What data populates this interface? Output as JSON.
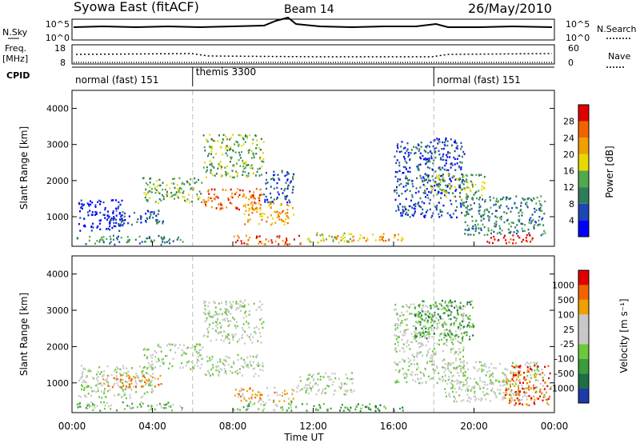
{
  "header": {
    "title": "Syowa East (fitACF)",
    "beam": "Beam 14",
    "date": "26/May/2010"
  },
  "top_panels": {
    "nsky_label": "N.Sky",
    "nsearch_label": "N.Search",
    "freq_label_1": "Freq.",
    "freq_label_2": "[MHz]",
    "nave_label": "Nave",
    "cpid_label": "CPID",
    "nsky_ticks": [
      "10^5",
      "10^0"
    ],
    "nsearch_ticks": [
      "10^5",
      "10^0"
    ],
    "freq_ticks": [
      "18",
      "8"
    ],
    "nave_ticks": [
      "60",
      "0"
    ],
    "cpid_segments": [
      {
        "label": "normal (fast) 151",
        "start": 0,
        "end": 6
      },
      {
        "label": "themis 3300",
        "start": 6,
        "end": 18
      },
      {
        "label": "normal (fast) 151",
        "start": 18,
        "end": 24
      }
    ]
  },
  "x_axis": {
    "title": "Time UT",
    "ticks": [
      "00:00",
      "04:00",
      "08:00",
      "12:00",
      "16:00",
      "20:00",
      "00:00"
    ]
  },
  "colors": {
    "power_scale": [
      "#0000ff",
      "#1e46b4",
      "#2e7d5a",
      "#52a84f",
      "#e8d800",
      "#f0a000",
      "#f06400",
      "#e00000"
    ],
    "velocity_scale": [
      "#1d3aa8",
      "#1e6e46",
      "#3a9c3a",
      "#6cc83c",
      "#c8c8c8",
      "#c8c8c8",
      "#f0a000",
      "#f06400",
      "#e00000"
    ]
  },
  "chart_data": [
    {
      "type": "heatmap",
      "name": "power",
      "ylabel": "Slant Range [km]",
      "yticks": [
        "1000",
        "2000",
        "3000",
        "4000"
      ],
      "xlim": [
        0,
        24
      ],
      "ylim": [
        180,
        4500
      ],
      "colorbar_label": "Power [dB]",
      "colorbar_ticks": [
        "4",
        "8",
        "12",
        "16",
        "20",
        "24",
        "28"
      ],
      "patches": [
        {
          "t": [
            0.2,
            5.5
          ],
          "r": [
            250,
            500
          ],
          "c": 2
        },
        {
          "t": [
            0.3,
            2.5
          ],
          "r": [
            600,
            1500
          ],
          "c": 0
        },
        {
          "t": [
            1.5,
            4.5
          ],
          "r": [
            800,
            1200
          ],
          "c": 1
        },
        {
          "t": [
            3.5,
            6.5
          ],
          "r": [
            1400,
            2100
          ],
          "c": 3
        },
        {
          "t": [
            6.5,
            9.5
          ],
          "r": [
            1200,
            1800
          ],
          "c": 6
        },
        {
          "t": [
            6.5,
            9.5
          ],
          "r": [
            2100,
            3300
          ],
          "c": 3
        },
        {
          "t": [
            8.5,
            11.0
          ],
          "r": [
            800,
            1400
          ],
          "c": 5
        },
        {
          "t": [
            8.0,
            11.5
          ],
          "r": [
            250,
            500
          ],
          "c": 6
        },
        {
          "t": [
            9.5,
            11.0
          ],
          "r": [
            1400,
            2300
          ],
          "c": 1
        },
        {
          "t": [
            11.5,
            14.0
          ],
          "r": [
            300,
            600
          ],
          "c": 4
        },
        {
          "t": [
            13.0,
            16.5
          ],
          "r": [
            350,
            550
          ],
          "c": 5
        },
        {
          "t": [
            16.0,
            19.5
          ],
          "r": [
            1000,
            3200
          ],
          "c": 1
        },
        {
          "t": [
            17.5,
            20.5
          ],
          "r": [
            1500,
            2200
          ],
          "c": 3
        },
        {
          "t": [
            19.5,
            23.5
          ],
          "r": [
            500,
            1600
          ],
          "c": 2
        },
        {
          "t": [
            20.5,
            23.0
          ],
          "r": [
            280,
            520
          ],
          "c": 7
        }
      ]
    },
    {
      "type": "heatmap",
      "name": "velocity",
      "ylabel": "Slant Range [km]",
      "yticks": [
        "1000",
        "2000",
        "3000",
        "4000"
      ],
      "xlim": [
        0,
        24
      ],
      "ylim": [
        180,
        4500
      ],
      "colorbar_label": "Velocity [m s⁻¹]",
      "colorbar_ticks": [
        "1000",
        "500",
        "100",
        "25",
        "-25",
        "-100",
        "-500",
        "-1000"
      ],
      "patches": [
        {
          "t": [
            0.2,
            5.5
          ],
          "r": [
            250,
            500
          ],
          "c": 3
        },
        {
          "t": [
            0.3,
            4.0
          ],
          "r": [
            600,
            1500
          ],
          "c": 4
        },
        {
          "t": [
            1.5,
            4.5
          ],
          "r": [
            900,
            1300
          ],
          "c": 6
        },
        {
          "t": [
            3.5,
            6.5
          ],
          "r": [
            1400,
            2100
          ],
          "c": 4
        },
        {
          "t": [
            6.5,
            9.5
          ],
          "r": [
            1200,
            1800
          ],
          "c": 4
        },
        {
          "t": [
            6.5,
            9.5
          ],
          "r": [
            2100,
            3300
          ],
          "c": 4
        },
        {
          "t": [
            8.0,
            11.0
          ],
          "r": [
            500,
            900
          ],
          "c": 6
        },
        {
          "t": [
            8.0,
            11.5
          ],
          "r": [
            250,
            500
          ],
          "c": 3
        },
        {
          "t": [
            11.5,
            16.5
          ],
          "r": [
            250,
            450
          ],
          "c": 2
        },
        {
          "t": [
            11.0,
            14.0
          ],
          "r": [
            700,
            1300
          ],
          "c": 4
        },
        {
          "t": [
            16.0,
            19.5
          ],
          "r": [
            1000,
            3200
          ],
          "c": 4
        },
        {
          "t": [
            17.0,
            20.0
          ],
          "r": [
            2200,
            3300
          ],
          "c": 2
        },
        {
          "t": [
            18.5,
            23.5
          ],
          "r": [
            500,
            1600
          ],
          "c": 4
        },
        {
          "t": [
            21.5,
            23.8
          ],
          "r": [
            400,
            1500
          ],
          "c": 7
        }
      ]
    }
  ]
}
